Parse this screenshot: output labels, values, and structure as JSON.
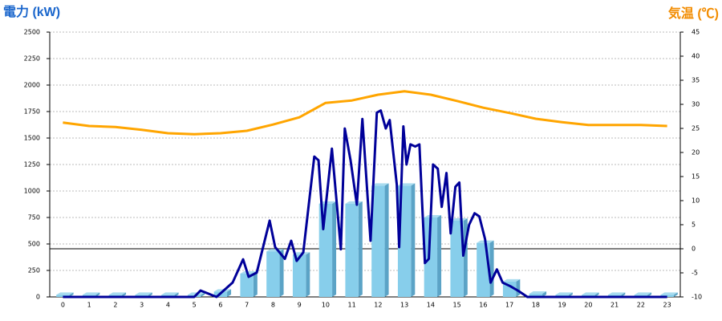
{
  "chart_data": {
    "type": "combo",
    "y_label": "電力 (kW)",
    "y2_label": "気温 (℃)",
    "categories": [
      "0",
      "1",
      "2",
      "3",
      "4",
      "5",
      "6",
      "7",
      "8",
      "9",
      "10",
      "11",
      "12",
      "13",
      "14",
      "15",
      "16",
      "17",
      "18",
      "19",
      "20",
      "21",
      "22",
      "23"
    ],
    "ylim": [
      0,
      2500
    ],
    "yticks": [
      0,
      250,
      500,
      750,
      1000,
      1250,
      1500,
      1750,
      2000,
      2250,
      2500
    ],
    "y2lim": [
      -10,
      45
    ],
    "y2ticks": [
      -10,
      -5,
      0,
      5,
      10,
      15,
      20,
      25,
      30,
      35,
      40,
      45
    ],
    "grid": true,
    "series": [
      {
        "type": "bar",
        "color": "#87ceeb",
        "values": [
          20,
          20,
          20,
          20,
          20,
          20,
          50,
          220,
          430,
          400,
          880,
          880,
          1050,
          1050,
          750,
          720,
          510,
          145,
          30,
          20,
          20,
          20,
          20,
          20
        ]
      },
      {
        "type": "line",
        "color": "#000099",
        "x": [
          0,
          5.0,
          5.24,
          5.85,
          6.46,
          6.86,
          7.07,
          7.38,
          7.87,
          8.08,
          8.45,
          8.69,
          8.9,
          9.15,
          9.57,
          9.73,
          9.91,
          10.24,
          10.58,
          10.73,
          10.95,
          11.19,
          11.4,
          11.71,
          11.95,
          12.1,
          12.29,
          12.44,
          12.71,
          12.8,
          12.96,
          13.08,
          13.23,
          13.41,
          13.57,
          13.78,
          13.93,
          14.09,
          14.27,
          14.42,
          14.6,
          14.76,
          14.94,
          15.09,
          15.24,
          15.46,
          15.67,
          15.85,
          16.07,
          16.28,
          16.52,
          16.74,
          17.04,
          17.35,
          17.68,
          23
        ],
        "values": [
          0,
          0,
          60,
          0,
          135,
          355,
          190,
          230,
          720,
          470,
          360,
          530,
          340,
          420,
          1325,
          1290,
          640,
          1400,
          450,
          1590,
          1290,
          870,
          1680,
          530,
          1740,
          1760,
          1590,
          1670,
          1060,
          470,
          1610,
          1250,
          1440,
          1420,
          1440,
          320,
          360,
          1250,
          1210,
          850,
          1170,
          600,
          1040,
          1080,
          390,
          680,
          790,
          760,
          545,
          135,
          260,
          135,
          100,
          55,
          0,
          0
        ]
      },
      {
        "type": "line",
        "axis": "y2",
        "color": "#ffa500",
        "values": [
          26.2,
          25.5,
          25.3,
          24.7,
          24.0,
          23.8,
          24.0,
          24.5,
          25.8,
          27.3,
          30.3,
          30.8,
          32.0,
          32.7,
          32.0,
          30.7,
          29.3,
          28.2,
          27.0,
          26.3,
          25.7,
          25.7,
          25.7,
          25.5
        ]
      }
    ]
  }
}
